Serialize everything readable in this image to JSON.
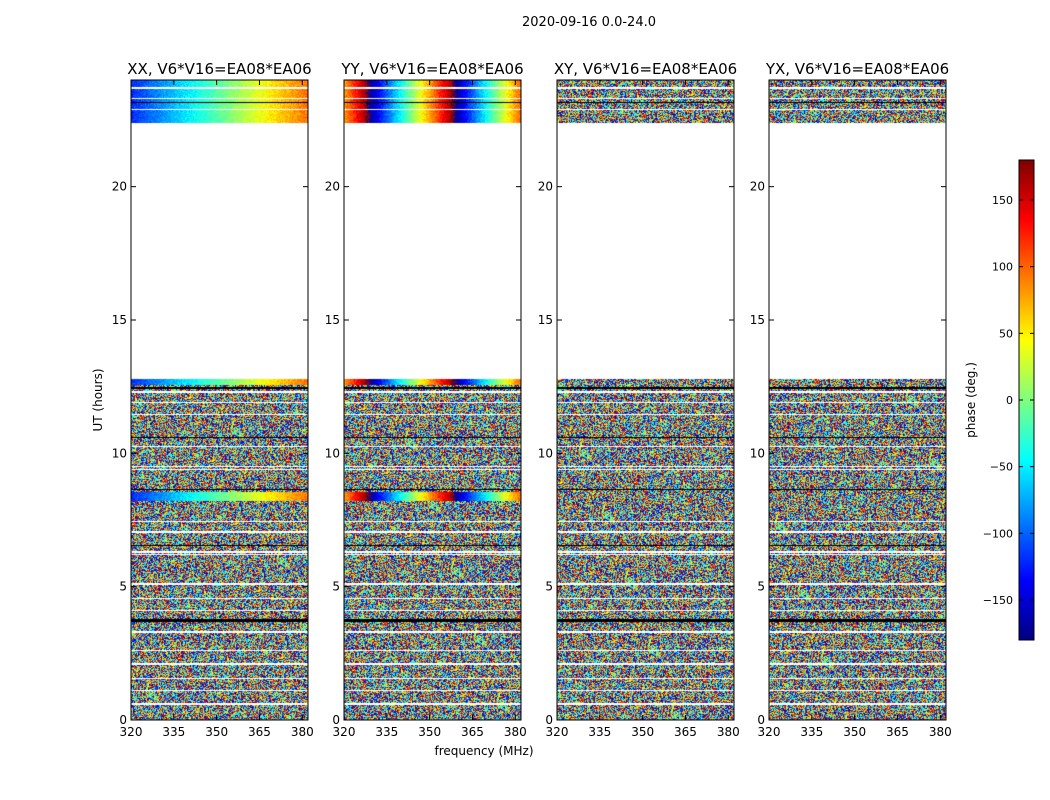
{
  "chart_data": {
    "type": "heatmap",
    "suptitle": "2020-09-16 0.0-24.0",
    "xlabel": "frequency (MHz)",
    "ylabel": "UT (hours)",
    "xlim": [
      320,
      382
    ],
    "ylim": [
      0,
      24
    ],
    "xticks": [
      320,
      335,
      350,
      365,
      380
    ],
    "yticks": [
      0,
      5,
      10,
      15,
      20
    ],
    "data_gaps_hours": [
      [
        12.8,
        22.4
      ]
    ],
    "panels": [
      {
        "title": "XX, V6*V16=EA08*EA06",
        "pattern": "noise",
        "calibrated_rows": [
          [
            8.2,
            8.55
          ],
          [
            12.55,
            12.8
          ],
          [
            22.4,
            24.0
          ]
        ],
        "base_phase": -120,
        "phase_slope": 3.5
      },
      {
        "title": "YY, V6*V16=EA08*EA06",
        "pattern": "noise",
        "calibrated_rows": [
          [
            8.2,
            8.55
          ],
          [
            12.55,
            12.8
          ],
          [
            22.4,
            24.0
          ]
        ],
        "base_phase": 80,
        "phase_slope": 12
      },
      {
        "title": "XY, V6*V16=EA08*EA06",
        "pattern": "noise",
        "calibrated_rows": [],
        "base_phase": 0,
        "phase_slope": 0
      },
      {
        "title": "YX, V6*V16=EA08*EA06",
        "pattern": "noise",
        "calibrated_rows": [],
        "base_phase": 0,
        "phase_slope": 0
      }
    ],
    "colorbar": {
      "label": "phase (deg.)",
      "range": [
        -180,
        180
      ],
      "ticks": [
        -150,
        -100,
        -50,
        0,
        50,
        100,
        150
      ],
      "tick_labels": [
        "−150",
        "−100",
        "−50",
        "0",
        "50",
        "100",
        "150"
      ],
      "colormap": "jet"
    },
    "colors": {
      "jet": [
        "#00007f",
        "#0000ff",
        "#007fff",
        "#00ffff",
        "#7fff7f",
        "#ffff00",
        "#ff7f00",
        "#ff0000",
        "#7f0000"
      ]
    }
  }
}
